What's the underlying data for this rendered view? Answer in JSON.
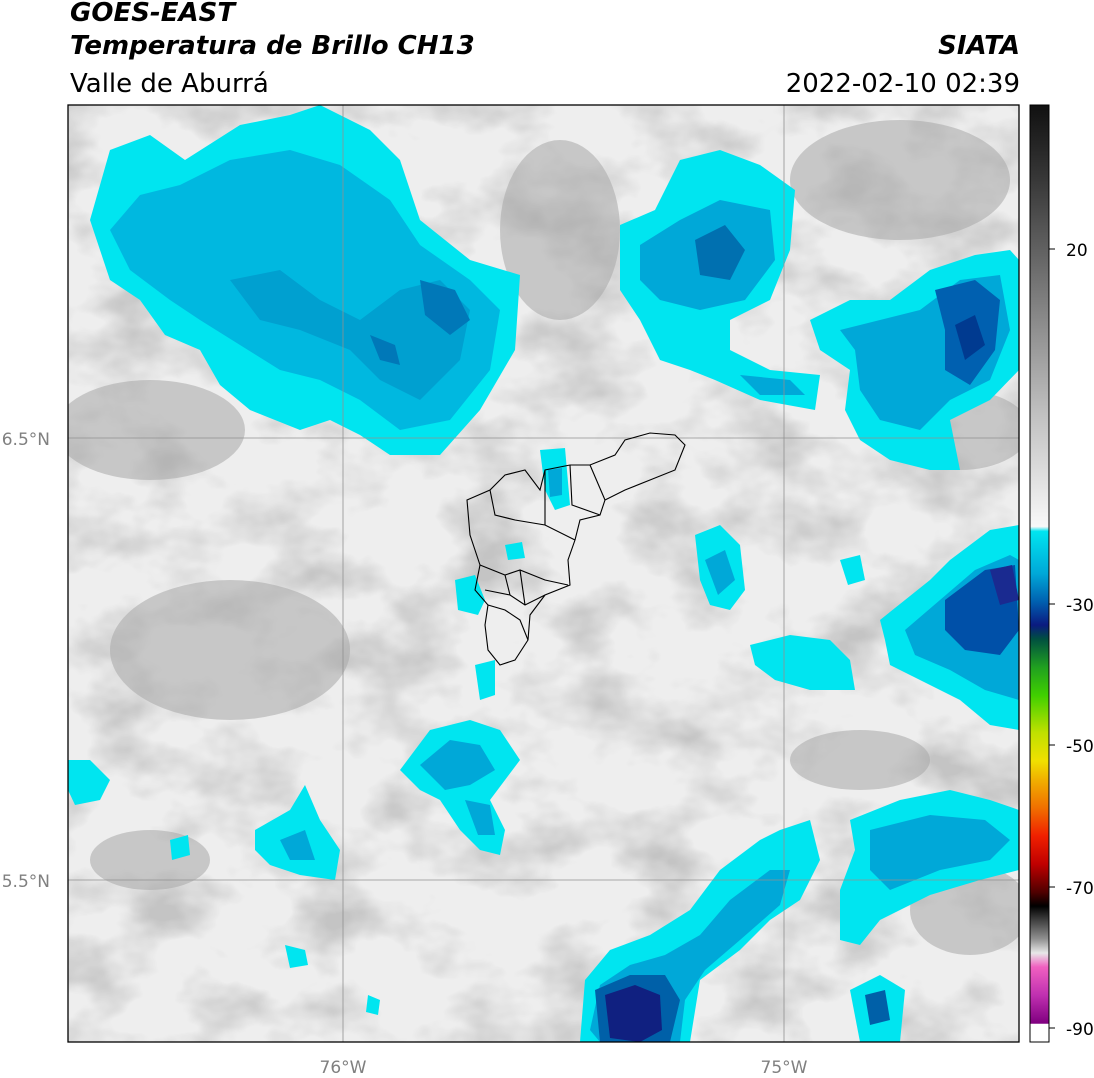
{
  "header": {
    "satellite": "GOES-EAST",
    "product": "Temperatura de Brillo CH13",
    "region": "Valle de Aburrá",
    "agency": "SIATA",
    "datetime": "2022-02-10 02:39"
  },
  "map": {
    "lat_labels": [
      "6.5°N",
      "5.5°N"
    ],
    "lon_labels": [
      "76°W",
      "75°W"
    ]
  },
  "colorbar": {
    "ticks": [
      "20",
      "-30",
      "-50",
      "-70",
      "-90"
    ],
    "colors": {
      "warm_dark": "#151515",
      "warm_light": "#f5f5f5",
      "cyan": "#00e5f0",
      "blue": "#0080c0",
      "navy": "#0a1a80",
      "green": "#20c020",
      "yellow": "#f0e000",
      "orange": "#f08000",
      "red": "#e00000",
      "black": "#000000",
      "pink": "#e040c0",
      "purple": "#800080"
    }
  }
}
